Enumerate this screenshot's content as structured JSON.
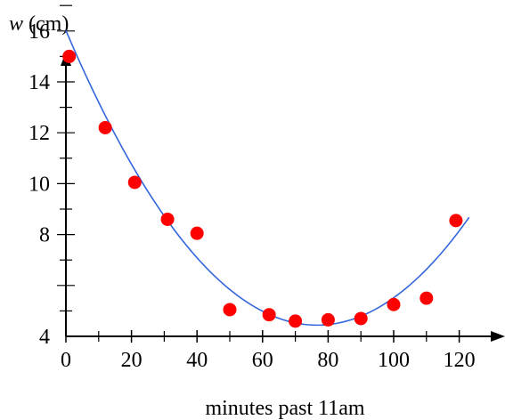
{
  "chart_data": {
    "type": "scatter",
    "title": "",
    "xlabel": "minutes past 11am",
    "ylabel_var": "w",
    "ylabel_unit": " (cm)",
    "xlim": [
      0,
      132
    ],
    "ylim": [
      4,
      17.5
    ],
    "x_ticks": [
      0,
      20,
      40,
      60,
      80,
      100,
      120
    ],
    "x_minor_ticks": [
      10,
      30,
      50,
      70,
      90,
      110
    ],
    "y_ticks": [
      4,
      6,
      8,
      10,
      12,
      14,
      16
    ],
    "y_tick_labels": [
      4,
      8,
      10,
      12,
      14,
      16
    ],
    "grid": false,
    "series": [
      {
        "kind": "points",
        "color": "#ff0000",
        "x": [
          1,
          12,
          21,
          31,
          40,
          50,
          62,
          70,
          80,
          90,
          100,
          110,
          119
        ],
        "y": [
          15.0,
          12.2,
          10.05,
          8.6,
          8.05,
          5.05,
          4.85,
          4.6,
          4.65,
          4.7,
          5.25,
          5.5,
          8.55
        ]
      },
      {
        "kind": "fitted-curve",
        "color": "#3366dd",
        "model": "quadratic",
        "coefficients": {
          "a": 0.001971,
          "b": -0.30214,
          "c": 16.02
        },
        "x_range": [
          0,
          123
        ]
      }
    ]
  }
}
